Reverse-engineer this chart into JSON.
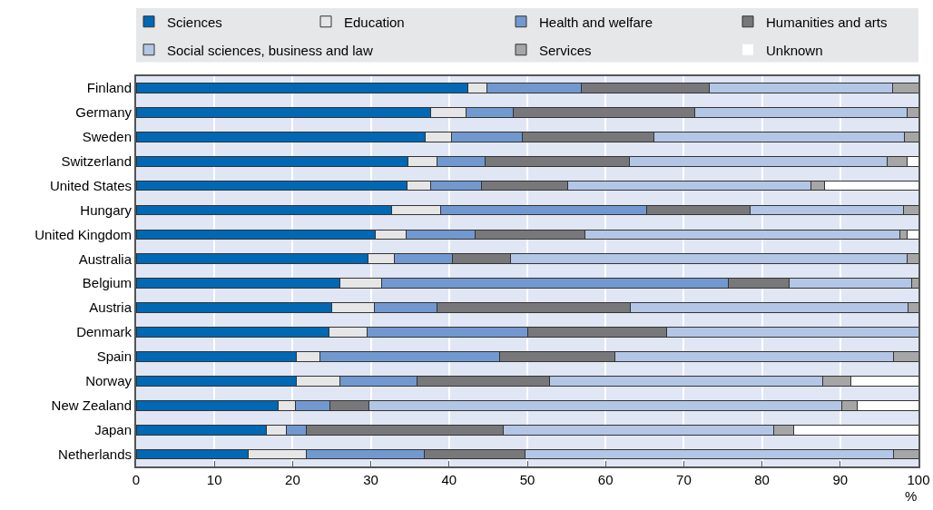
{
  "chart_data": {
    "type": "bar",
    "orientation": "horizontal",
    "stacked": true,
    "xlabel": "%",
    "categories": [
      "Finland",
      "Germany",
      "Sweden",
      "Switzerland",
      "United States",
      "Hungary",
      "United Kingdom",
      "Australia",
      "Belgium",
      "Austria",
      "Denmark",
      "Spain",
      "Norway",
      "New Zealand",
      "Japan",
      "Netherlands"
    ],
    "series": [
      {
        "name": "Sciences",
        "color": "#0068b4",
        "values": [
          42.4,
          37.7,
          36.9,
          34.7,
          34.6,
          32.6,
          30.6,
          29.6,
          26.1,
          25.0,
          24.6,
          20.5,
          20.5,
          18.2,
          16.6,
          14.3
        ]
      },
      {
        "name": "Education",
        "color": "#e6e6e6",
        "values": [
          2.4,
          4.5,
          3.4,
          3.8,
          3.0,
          6.3,
          3.9,
          3.4,
          5.3,
          5.4,
          4.9,
          3.0,
          5.5,
          2.2,
          2.6,
          7.5
        ]
      },
      {
        "name": "Health and welfare",
        "color": "#7199d0",
        "values": [
          12.1,
          6.0,
          9.1,
          6.1,
          6.5,
          26.4,
          8.8,
          7.4,
          44.3,
          8.1,
          20.6,
          23.0,
          9.9,
          4.4,
          2.5,
          15.0
        ]
      },
      {
        "name": "Humanities and arts",
        "color": "#78787a",
        "values": [
          16.4,
          23.2,
          16.8,
          18.5,
          11.1,
          13.2,
          14.1,
          7.5,
          7.8,
          24.7,
          17.7,
          14.7,
          16.9,
          5.0,
          25.2,
          12.9
        ]
      },
      {
        "name": "Social sciences, business and law",
        "color": "#b3c6e6",
        "values": [
          23.4,
          27.1,
          32.0,
          32.9,
          31.0,
          19.6,
          40.2,
          50.6,
          15.6,
          35.5,
          32.2,
          35.6,
          35.0,
          60.4,
          34.6,
          47.1
        ]
      },
      {
        "name": "Services",
        "color": "#a6a6a6",
        "values": [
          3.3,
          1.5,
          1.8,
          2.6,
          1.8,
          1.9,
          1.0,
          1.5,
          0.9,
          1.3,
          0,
          3.2,
          3.6,
          2.0,
          2.5,
          3.2
        ]
      },
      {
        "name": "Unknown",
        "color": "#ffffff",
        "values": [
          0,
          0,
          0,
          1.4,
          12.0,
          0,
          1.4,
          0,
          0,
          0,
          0,
          0,
          8.6,
          7.8,
          16.0,
          0
        ]
      }
    ],
    "xlim": [
      0,
      100
    ],
    "xticks": [
      0,
      10,
      20,
      30,
      40,
      50,
      60,
      70,
      80,
      90,
      100
    ],
    "grid": "x",
    "legend": "top"
  }
}
